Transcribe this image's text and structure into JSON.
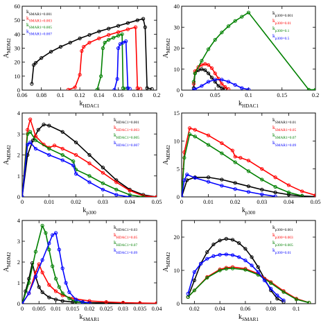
{
  "chart_data": [
    {
      "type": "line",
      "xlabel": "k_HDAC1",
      "ylabel": "A_MDM2",
      "xlim": [
        0.06,
        0.2
      ],
      "ylim": [
        0,
        60
      ],
      "xticks": [
        0.06,
        0.08,
        0.1,
        0.12,
        0.14,
        0.16,
        0.18,
        0.2
      ],
      "xtick_labels": [
        "0.06",
        "0.08",
        "0.1",
        "0.12",
        "0.14",
        "0.16",
        "0.18",
        "0.2"
      ],
      "yticks": [
        0,
        10,
        20,
        30,
        40,
        50,
        60
      ],
      "ytick_labels": [
        "0",
        "10",
        "20",
        "30",
        "40",
        "50",
        "60"
      ],
      "legend": "top-left",
      "series": [
        {
          "name": "k_SMAR1=0.001",
          "color": "#000000",
          "x": [
            0.07,
            0.072,
            0.074,
            0.08,
            0.09,
            0.1,
            0.11,
            0.12,
            0.13,
            0.14,
            0.15,
            0.16,
            0.17,
            0.18,
            0.186,
            0.188,
            0.19,
            0.195
          ],
          "y": [
            4.5,
            18,
            19.5,
            23,
            27.5,
            31,
            34,
            37,
            39.5,
            42,
            44,
            46,
            48,
            50,
            51,
            45,
            1.5,
            0.8
          ]
        },
        {
          "name": "k_SMAR1=0.003",
          "color": "#ff0000",
          "x": [
            0.108,
            0.115,
            0.12,
            0.122,
            0.124,
            0.13,
            0.14,
            0.15,
            0.16,
            0.17,
            0.178,
            0.18,
            0.183
          ],
          "y": [
            0.3,
            2,
            11,
            28,
            31,
            34,
            37,
            39.5,
            41.5,
            43.5,
            45,
            1.5,
            1
          ]
        },
        {
          "name": "k_SMAR1=0.005",
          "color": "#008000",
          "x": [
            0.138,
            0.142,
            0.144,
            0.146,
            0.15,
            0.155,
            0.16,
            0.164,
            0.165,
            0.168
          ],
          "y": [
            0.3,
            10,
            30,
            34,
            36,
            37.5,
            39,
            40,
            1.5,
            1
          ]
        },
        {
          "name": "k_SMAR1=0.007",
          "color": "#0000ff",
          "x": [
            0.156,
            0.159,
            0.16,
            0.162,
            0.165,
            0.168,
            0.17,
            0.172
          ],
          "y": [
            0.3,
            8,
            30,
            33,
            34,
            35,
            1.5,
            1
          ]
        }
      ]
    },
    {
      "type": "line",
      "xlabel": "k_HDAC1",
      "ylabel": "A_MDM2",
      "xlim": [
        0,
        0.2
      ],
      "ylim": [
        0,
        40
      ],
      "xticks": [
        0,
        0.05,
        0.1,
        0.15,
        0.2
      ],
      "xtick_labels": [
        "0",
        "0.05",
        "0.1",
        "0.15",
        "0.2"
      ],
      "yticks": [
        0,
        10,
        20,
        30,
        40
      ],
      "ytick_labels": [
        "0",
        "10",
        "20",
        "30",
        "40"
      ],
      "legend": "top-right",
      "series": [
        {
          "name": "k_p300=0.001",
          "color": "#000000",
          "x": [
            0.018,
            0.02,
            0.025,
            0.03,
            0.035,
            0.04,
            0.045,
            0.05,
            0.055,
            0.06,
            0.065
          ],
          "y": [
            1,
            8,
            9.5,
            10,
            9.5,
            8,
            6,
            4,
            2,
            1,
            0.5
          ]
        },
        {
          "name": "k_p300=0.01",
          "color": "#ff0000",
          "x": [
            0.018,
            0.02,
            0.025,
            0.03,
            0.035,
            0.04,
            0.045,
            0.05,
            0.055,
            0.06,
            0.065,
            0.07
          ],
          "y": [
            3,
            9,
            11,
            12,
            12.5,
            12,
            10.5,
            8,
            5.5,
            3,
            1.5,
            0.5
          ]
        },
        {
          "name": "k_p300=0.1",
          "color": "#008000",
          "x": [
            0.018,
            0.02,
            0.03,
            0.04,
            0.05,
            0.06,
            0.07,
            0.08,
            0.09,
            0.1,
            0.19,
            0.2
          ],
          "y": [
            4,
            8,
            14,
            19.5,
            24,
            27.5,
            30.5,
            33,
            35,
            37,
            0.2,
            0.2
          ]
        },
        {
          "name": "k_p300=0.5",
          "color": "#0000ff",
          "x": [
            0.018,
            0.02,
            0.03,
            0.04,
            0.05,
            0.06,
            0.07,
            0.08,
            0.09,
            0.1
          ],
          "y": [
            0,
            0.5,
            2,
            4,
            5,
            5,
            4,
            2.5,
            1,
            0.3
          ]
        }
      ]
    },
    {
      "type": "line",
      "xlabel": "k_p300",
      "ylabel": "A_MDM2",
      "xlim": [
        0,
        0.05
      ],
      "ylim": [
        0,
        4
      ],
      "xticks": [
        0,
        0.01,
        0.02,
        0.03,
        0.04,
        0.05
      ],
      "xtick_labels": [
        "0",
        "0.01",
        "0.02",
        "0.03",
        "0.04",
        "0.05"
      ],
      "yticks": [
        0,
        1,
        2,
        3,
        4
      ],
      "ytick_labels": [
        "0",
        "1",
        "2",
        "3",
        "4"
      ],
      "legend": "top-right",
      "series": [
        {
          "name": "k_HDAC1=0.001",
          "color": "#000000",
          "x": [
            0,
            0.002,
            0.004,
            0.006,
            0.008,
            0.01,
            0.015,
            0.02,
            0.025,
            0.03,
            0.035,
            0.04,
            0.045,
            0.05
          ],
          "y": [
            0,
            2,
            2.7,
            3.2,
            3.45,
            3.4,
            3.1,
            2.6,
            2,
            1.4,
            0.8,
            0.35,
            0.1,
            0
          ]
        },
        {
          "name": "k_HDAC1=0.003",
          "color": "#ff0000",
          "x": [
            0,
            0.002,
            0.003,
            0.005,
            0.008,
            0.01,
            0.012,
            0.015,
            0.02,
            0.025,
            0.03,
            0.035,
            0.04,
            0.045,
            0.05
          ],
          "y": [
            0,
            3.2,
            3.7,
            2.9,
            2.5,
            2.35,
            2.45,
            2.3,
            2,
            1.6,
            1.15,
            0.7,
            0.3,
            0.05,
            0
          ]
        },
        {
          "name": "k_HDAC1=0.005",
          "color": "#008000",
          "x": [
            0,
            0.002,
            0.003,
            0.005,
            0.01,
            0.015,
            0.019,
            0.02,
            0.025,
            0.03,
            0.035,
            0.04,
            0.045
          ],
          "y": [
            0,
            3.0,
            3.1,
            2.7,
            2.3,
            2.0,
            1.7,
            1.3,
            1.0,
            0.65,
            0.35,
            0.1,
            0
          ]
        },
        {
          "name": "k_HDAC1=0.007",
          "color": "#0000ff",
          "x": [
            0,
            0.002,
            0.003,
            0.005,
            0.01,
            0.015,
            0.019,
            0.02,
            0.025,
            0.03,
            0.035,
            0.04
          ],
          "y": [
            0,
            2.5,
            2.6,
            2.3,
            2.0,
            1.75,
            1.5,
            1.1,
            0.7,
            0.35,
            0.1,
            0
          ]
        }
      ]
    },
    {
      "type": "line",
      "xlabel": "k_p300",
      "ylabel": "A_MDM2",
      "xlim": [
        0,
        0.05
      ],
      "ylim": [
        0,
        15
      ],
      "xticks": [
        0,
        0.01,
        0.02,
        0.03,
        0.04,
        0.05
      ],
      "xtick_labels": [
        "0",
        "0.01",
        "0.02",
        "0.03",
        "0.04",
        "0.05"
      ],
      "yticks": [
        0,
        5,
        10,
        15
      ],
      "ytick_labels": [
        "0",
        "5",
        "10",
        "15"
      ],
      "legend": "top-right",
      "series": [
        {
          "name": "k_SMAR1=0.01",
          "color": "#000000",
          "x": [
            0,
            0.002,
            0.005,
            0.01,
            0.015,
            0.02,
            0.025,
            0.03,
            0.035,
            0.04,
            0.045,
            0.05
          ],
          "y": [
            0,
            3,
            3.5,
            3.5,
            3.1,
            2.5,
            1.9,
            1.3,
            0.8,
            0.4,
            0.15,
            0.05
          ]
        },
        {
          "name": "k_SMAR1=0.05",
          "color": "#ff0000",
          "x": [
            0,
            0.001,
            0.003,
            0.005,
            0.01,
            0.015,
            0.019,
            0.02,
            0.022,
            0.025,
            0.03,
            0.035,
            0.04,
            0.045,
            0.05
          ],
          "y": [
            0,
            8,
            12.3,
            12,
            11,
            9.6,
            8.3,
            7.2,
            7.0,
            6.5,
            5,
            3.5,
            2.1,
            1,
            0.3
          ]
        },
        {
          "name": "k_SMAR1=0.07",
          "color": "#008000",
          "x": [
            0,
            0.001,
            0.003,
            0.005,
            0.01,
            0.015,
            0.02,
            0.025,
            0.03,
            0.035,
            0.04,
            0.045
          ],
          "y": [
            0,
            7,
            11.2,
            10.8,
            9.3,
            7.8,
            6.2,
            4.6,
            3.1,
            1.8,
            0.8,
            0.2
          ]
        },
        {
          "name": "k_SMAR1=0.09",
          "color": "#0000ff",
          "x": [
            0,
            0.001,
            0.002,
            0.005,
            0.01,
            0.015,
            0.02,
            0.025,
            0.03,
            0.035
          ],
          "y": [
            0,
            3,
            4,
            3.4,
            2.7,
            2,
            1.4,
            0.9,
            0.45,
            0.1
          ]
        }
      ]
    },
    {
      "type": "line",
      "xlabel": "k_SMAR1",
      "ylabel": "A_MDM2",
      "xlim": [
        0,
        0.04
      ],
      "ylim": [
        0,
        4
      ],
      "xticks": [
        0,
        0.005,
        0.01,
        0.015,
        0.02,
        0.025,
        0.03,
        0.035,
        0.04
      ],
      "xtick_labels": [
        "0",
        "0.005",
        "0.01",
        "0.015",
        "0.02",
        "0.025",
        "0.03",
        "0.035",
        "0.04"
      ],
      "yticks": [
        0,
        1,
        2,
        3,
        4
      ],
      "ytick_labels": [
        "0",
        "1",
        "2",
        "3",
        "4"
      ],
      "legend": "top-right",
      "series": [
        {
          "name": "k_HDAC1=0.03",
          "color": "#000000",
          "x": [
            0,
            0.001,
            0.002,
            0.003,
            0.004,
            0.005,
            0.006,
            0.008,
            0.01,
            0.012,
            0.015,
            0.02,
            0.025,
            0.03,
            0.035,
            0.04
          ],
          "y": [
            0,
            0.6,
            1.2,
            1.95,
            1.3,
            0.8,
            0.55,
            0.3,
            0.2,
            0.13,
            0.08,
            0.05,
            0.03,
            0.02,
            0.01,
            0.01
          ]
        },
        {
          "name": "k_HDAC1=0.05",
          "color": "#ff0000",
          "x": [
            0,
            0.002,
            0.004,
            0.005,
            0.006,
            0.008,
            0.01,
            0.012,
            0.015,
            0.02,
            0.025,
            0.03,
            0.035,
            0.04
          ],
          "y": [
            0,
            0.5,
            1.5,
            1.9,
            1.5,
            0.9,
            0.6,
            0.4,
            0.25,
            0.13,
            0.08,
            0.05,
            0.03,
            0.02
          ]
        },
        {
          "name": "k_HDAC1=0.07",
          "color": "#008000",
          "x": [
            0,
            0.002,
            0.004,
            0.006,
            0.007,
            0.008,
            0.009,
            0.01,
            0.011,
            0.012,
            0.014,
            0.016,
            0.018,
            0.02
          ],
          "y": [
            0,
            1,
            2.5,
            3.75,
            3.4,
            2.6,
            1.8,
            1.2,
            0.8,
            0.5,
            0.25,
            0.1,
            0.05,
            0.02
          ]
        },
        {
          "name": "k_HDAC1=0.09",
          "color": "#0000ff",
          "x": [
            0,
            0.002,
            0.004,
            0.006,
            0.008,
            0.009,
            0.01,
            0.011,
            0.012,
            0.013,
            0.014,
            0.016,
            0.018,
            0.02
          ],
          "y": [
            0,
            0.5,
            1.3,
            2.1,
            2.9,
            3.3,
            3.4,
            2.6,
            1.7,
            1.0,
            0.55,
            0.2,
            0.08,
            0.03
          ]
        }
      ]
    },
    {
      "type": "line",
      "xlabel": "k_SMAR1",
      "ylabel": "A_MDM2",
      "xlim": [
        0.01,
        0.115
      ],
      "ylim": [
        0,
        25
      ],
      "xticks": [
        0.02,
        0.04,
        0.06,
        0.08,
        0.1
      ],
      "xtick_labels": [
        "0.02",
        "0.04",
        "0.06",
        "0.08",
        "0.1"
      ],
      "yticks": [
        0,
        10,
        20
      ],
      "ytick_labels": [
        "0",
        "10",
        "20"
      ],
      "legend": "top-right",
      "series": [
        {
          "name": "k_p300=0.001",
          "color": "#000000",
          "x": [
            0.015,
            0.02,
            0.025,
            0.03,
            0.035,
            0.04,
            0.045,
            0.05,
            0.055,
            0.06,
            0.065,
            0.07,
            0.075,
            0.08,
            0.085,
            0.09
          ],
          "y": [
            2,
            7,
            12,
            15.5,
            17.8,
            19,
            19.5,
            19.2,
            18.2,
            16.5,
            14,
            11,
            7.5,
            4,
            1.5,
            0.5
          ]
        },
        {
          "name": "k_p300=0.003",
          "color": "#ff0000",
          "x": [
            0.015,
            0.02,
            0.03,
            0.04,
            0.045,
            0.05,
            0.06,
            0.07,
            0.08,
            0.09,
            0.1,
            0.11
          ],
          "y": [
            2,
            4,
            8,
            10.3,
            10.8,
            11,
            10.5,
            9,
            6.5,
            3.8,
            1.5,
            0.3
          ]
        },
        {
          "name": "k_p300=0.005",
          "color": "#008000",
          "x": [
            0.015,
            0.02,
            0.03,
            0.04,
            0.045,
            0.05,
            0.06,
            0.07,
            0.08,
            0.09,
            0.1,
            0.11
          ],
          "y": [
            2,
            4,
            7.8,
            10,
            10.5,
            10.6,
            10.2,
            8.7,
            6.2,
            3.5,
            1.3,
            0.3
          ]
        },
        {
          "name": "k_p300=0.01",
          "color": "#0000ff",
          "x": [
            0.015,
            0.02,
            0.025,
            0.03,
            0.035,
            0.04,
            0.045,
            0.05,
            0.055,
            0.06,
            0.065,
            0.07,
            0.075,
            0.08,
            0.085,
            0.09
          ],
          "y": [
            3,
            9.5,
            12,
            13.5,
            14.3,
            14.7,
            14.8,
            14.6,
            14,
            13,
            11.5,
            9.5,
            7,
            4.5,
            2.5,
            1
          ]
        }
      ]
    }
  ]
}
